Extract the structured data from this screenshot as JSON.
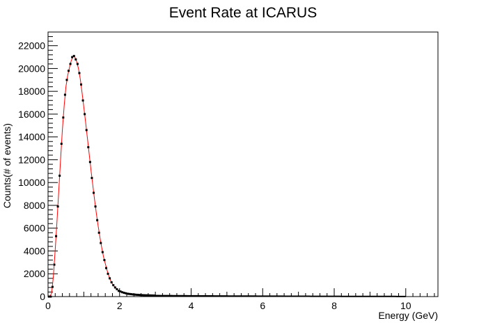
{
  "chart_data": {
    "type": "line",
    "title": "Event Rate at ICARUS",
    "xlabel": "Energy (GeV)",
    "ylabel": "Counts(# of events)",
    "xlim": [
      0,
      10.9
    ],
    "ylim": [
      0,
      23200
    ],
    "x_ticks": [
      0,
      2,
      4,
      6,
      8,
      10
    ],
    "y_ticks": [
      0,
      2000,
      4000,
      6000,
      8000,
      10000,
      12000,
      14000,
      16000,
      18000,
      20000,
      22000
    ],
    "grid": false,
    "legend": "none",
    "colors": {
      "fit_line": "#ff0000",
      "points": "#000000",
      "axes": "#000000"
    },
    "bin_width": 0.05,
    "series": [
      {
        "style": "points",
        "x": [
          0.025,
          0.075,
          0.125,
          0.175,
          0.225,
          0.275,
          0.325,
          0.375,
          0.425,
          0.475,
          0.525,
          0.575,
          0.625,
          0.675,
          0.725,
          0.775,
          0.825,
          0.875,
          0.925,
          0.975,
          1.025,
          1.075,
          1.125,
          1.175,
          1.225,
          1.275,
          1.325,
          1.375,
          1.425,
          1.475,
          1.525,
          1.575,
          1.625,
          1.675,
          1.725,
          1.775,
          1.825,
          1.875,
          1.925,
          1.975,
          2.025,
          2.075,
          2.125,
          2.175,
          2.225,
          2.275,
          2.325,
          2.375,
          2.425,
          2.475,
          2.525,
          2.575,
          2.625,
          2.675,
          2.725,
          2.775,
          2.825,
          2.875,
          2.925,
          2.975
        ],
        "y": [
          0,
          0,
          850,
          2800,
          5300,
          7900,
          10600,
          13400,
          15700,
          17700,
          19000,
          19800,
          20400,
          21000,
          21100,
          20800,
          20400,
          19600,
          18600,
          17200,
          16000,
          14600,
          13100,
          11800,
          10400,
          9100,
          7900,
          6700,
          5600,
          4700,
          3900,
          3200,
          2500,
          2000,
          1600,
          1250,
          1000,
          800,
          650,
          500,
          450,
          380,
          330,
          290,
          250,
          230,
          210,
          190,
          175,
          160,
          150,
          140,
          130,
          120,
          115,
          110,
          105,
          100,
          95,
          90
        ],
        "tail_from": 3.0,
        "tail_to": 10.0,
        "tail_values_at": [
          3.0,
          4.0,
          5.0,
          6.0,
          7.0,
          8.0,
          9.0,
          10.0
        ],
        "tail_values": [
          90,
          70,
          50,
          40,
          30,
          20,
          15,
          10
        ]
      },
      {
        "style": "line",
        "x": [
          0.05,
          0.1,
          0.15,
          0.2,
          0.25,
          0.3,
          0.35,
          0.4,
          0.45,
          0.5,
          0.55,
          0.6,
          0.65,
          0.7,
          0.75,
          0.8,
          0.85,
          0.9,
          0.95,
          1.0,
          1.05,
          1.1,
          1.15,
          1.2,
          1.25,
          1.3,
          1.35,
          1.4,
          1.45,
          1.5,
          1.55,
          1.6,
          1.65,
          1.7,
          1.75,
          1.8,
          1.85,
          1.9,
          1.95,
          2.0,
          2.05,
          2.1,
          2.15,
          2.2,
          2.25,
          2.3,
          2.35,
          2.4,
          2.45,
          2.5,
          2.55,
          2.6,
          2.65,
          2.7,
          2.75,
          2.8,
          2.85,
          2.9,
          2.95,
          3.0
        ],
        "y": [
          0,
          300,
          1800,
          4100,
          6600,
          9300,
          12000,
          14600,
          16700,
          18400,
          19400,
          20100,
          20700,
          21050,
          21000,
          20600,
          20000,
          19100,
          17900,
          16600,
          15300,
          13900,
          12500,
          11100,
          9800,
          8500,
          7300,
          6200,
          5200,
          4300,
          3500,
          2900,
          2300,
          1800,
          1400,
          1100,
          900,
          720,
          580,
          480,
          420,
          360,
          310,
          270,
          240,
          220,
          200,
          185,
          170,
          155,
          145,
          135,
          125,
          118,
          112,
          107,
          102,
          97,
          92,
          88
        ]
      }
    ]
  }
}
